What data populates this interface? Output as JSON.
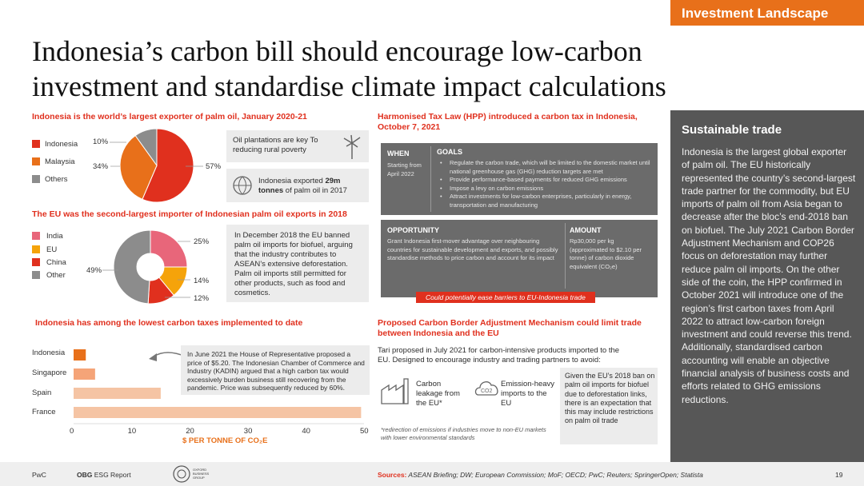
{
  "header": {
    "tag": "Investment Landscape",
    "title_line1": "Indonesia’s carbon bill should encourage low-carbon",
    "title_line2": "investment and standardise climate impact calculations"
  },
  "palm_exports": {
    "heading": "Indonesia is the world’s largest exporter of palm oil, January 2020-21",
    "legend": [
      "Indonesia",
      "Malaysia",
      "Others"
    ],
    "pct_labels": [
      "10%",
      "34%",
      "57%"
    ],
    "callout1": "Oil plantations are key To reducing rural poverty",
    "callout2_pre": "Indonesia exported ",
    "callout2_bold": "29m tonnes",
    "callout2_post": " of palm oil in 2017"
  },
  "eu_imports": {
    "heading": "The EU was the second-largest importer of Indonesian palm oil exports in 2018",
    "legend": [
      "India",
      "EU",
      "China",
      "Other"
    ],
    "pct_labels": [
      "25%",
      "14%",
      "12%",
      "49%"
    ],
    "callout": "In December 2018 the EU banned palm oil imports for biofuel, arguing that the industry contributes to ASEAN’s extensive deforestation. Palm oil imports still permitted for other products, such as food and cosmetics."
  },
  "carbon_taxes": {
    "heading": "Indonesia has among the lowest carbon taxes implemented to date",
    "callout": "In June 2021 the House of Representative proposed a price of $5.20. The Indonesian Chamber of Commerce and Industry (KADIN) argued that a high carbon tax would excessively burden business still recovering from the pandemic. Price was subsequently reduced by 60%.",
    "axis_label": "$ PER TONNE OF CO₂E",
    "ticks": [
      "0",
      "10",
      "20",
      "30",
      "40",
      "50"
    ]
  },
  "hpp": {
    "heading": "Harmonised Tax Law (HPP) introduced a carbon tax in Indonesia, October 7, 2021",
    "when_h": "WHEN",
    "when_t": "Starting from April 2022",
    "goals_h": "GOALS",
    "goals": [
      "Regulate the carbon trade, which will be limited to the domestic market until national greenhouse gas (GHG) reduction targets are met",
      "Provide performance-based payments for reduced GHG emissions",
      "Impose a levy on carbon emissions",
      "Attract investments for low-carbon enterprises, particularly in energy, transportation and manufacturing"
    ],
    "opp_h": "OPPORTUNITY",
    "opp_t": "Grant Indonesia first-mover advantage over neighbouring countries for sustainable development and exports, and possibly standardise methods to price carbon and account for its impact",
    "amt_h": "AMOUNT",
    "amt_t": "Rp30,000 per kg (approximated to $2.10 per tonne) of carbon dioxide equivalent (CO₂e)",
    "tag": "Could potentially ease barriers to EU-Indonesia trade"
  },
  "cbam": {
    "heading": "Proposed Carbon Border Adjustment Mechanism could limit trade between Indonesia and the EU",
    "intro": "Tari proposed in July 2021 for carbon-intensive products imported to the EU. Designed to encourage industry and trading partners to avoid:",
    "item1": "Carbon leakage from the EU*",
    "item2": "Emission-heavy imports to the EU",
    "co2_icon": "CO2",
    "footnote": "*redirection of emissions if industries move to non-EU markets with lower environmental standards",
    "callout": "Given the EU’s 2018 ban on palm oil imports for biofuel due to deforestation links, there is an expectation that this may include restrictions on palm oil trade"
  },
  "sidebar": {
    "heading": "Sustainable trade",
    "body": "Indonesia is the largest global exporter of palm oil. The EU historically represented the country’s second-largest trade partner for the commodity, but EU imports of palm oil from Asia began to decrease after the bloc’s end-2018 ban on biofuel. The July 2021 Carbon Border Adjustment Mechanism and COP26 focus on deforestation may further reduce palm oil imports. On the other side of the coin, the HPP confirmed in October 2021 will introduce one of the region’s first carbon taxes from April 2022 to attract low-carbon foreign investment and could reverse this trend. Additionally, standardised carbon accounting will enable an objective financial analysis of business costs and efforts related to GHG emissions reductions."
  },
  "footer": {
    "left": "PwC",
    "report_bold": "OBG",
    "report_rest": " ESG Report",
    "logo_text": "OXFORD BUSINESS GROUP",
    "sources_label": "Sources:",
    "sources": " ASEAN Briefing; DW; European Commission; MoF; OECD; PwC; Reuters; SpringerOpen; Statista",
    "page": "19"
  },
  "colors": {
    "red": "#e0301e",
    "orange": "#e8701a",
    "amber": "#f5a30a",
    "grey": "#8c8c8c",
    "pink": "#e8667a",
    "peach": "#f5c4a4"
  },
  "chart_data": [
    {
      "type": "pie",
      "title": "Indonesia is the world’s largest exporter of palm oil, January 2020-21",
      "categories": [
        "Indonesia",
        "Malaysia",
        "Others"
      ],
      "values": [
        57,
        34,
        10
      ],
      "colors": [
        "#e0301e",
        "#e8701a",
        "#8c8c8c"
      ]
    },
    {
      "type": "pie",
      "title": "The EU was the second-largest importer of Indonesian palm oil exports in 2018",
      "categories": [
        "India",
        "EU",
        "China",
        "Other"
      ],
      "values": [
        25,
        14,
        12,
        49
      ],
      "colors": [
        "#e8667a",
        "#f5a30a",
        "#e0301e",
        "#8c8c8c"
      ]
    },
    {
      "type": "bar",
      "orientation": "horizontal",
      "title": "Indonesia has among the lowest carbon taxes implemented to date",
      "categories": [
        "Indonesia",
        "Singapore",
        "Spain",
        "France"
      ],
      "values": [
        2.1,
        3.7,
        15,
        49.5
      ],
      "colors": [
        "#e8701a",
        "#f5a478",
        "#f5c4a4",
        "#f5c4a4"
      ],
      "xlabel": "$ PER TONNE OF CO₂E",
      "xlim": [
        0,
        50
      ]
    }
  ]
}
